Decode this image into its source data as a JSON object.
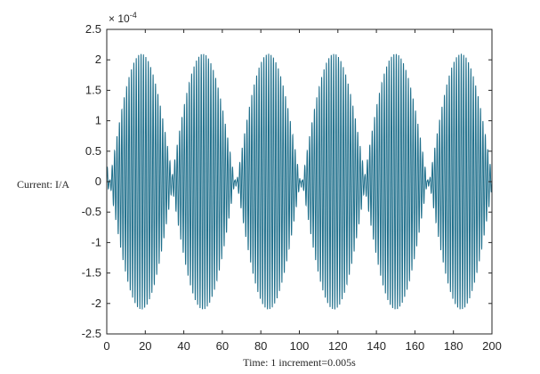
{
  "chart_data": {
    "type": "line",
    "title": "",
    "xlabel": "Time: 1 increment=0.005s",
    "ylabel": "Current: I/A",
    "y_exponent_label": "× 10",
    "y_exponent_power": "-4",
    "xlim": [
      0,
      200
    ],
    "ylim": [
      -2.5,
      2.5
    ],
    "x_ticks": [
      "0",
      "20",
      "40",
      "60",
      "80",
      "100",
      "120",
      "140",
      "160",
      "180",
      "200"
    ],
    "y_ticks": [
      "2.5",
      "2",
      "1.5",
      "1",
      "0.5",
      "0",
      "-0.5",
      "-1",
      "-1.5",
      "-2",
      "-2.5"
    ],
    "grid": false,
    "legend": "none",
    "line_color": "#1f6f8b",
    "series": [
      {
        "x_range": [
          0,
          200
        ],
        "envelope_amplitude": 2.1,
        "envelope_peaks_x": [
          18,
          50,
          84,
          118,
          150,
          184
        ],
        "envelope_period": 33,
        "carrier_cycles_per_x_unit": 0.8
      }
    ]
  }
}
